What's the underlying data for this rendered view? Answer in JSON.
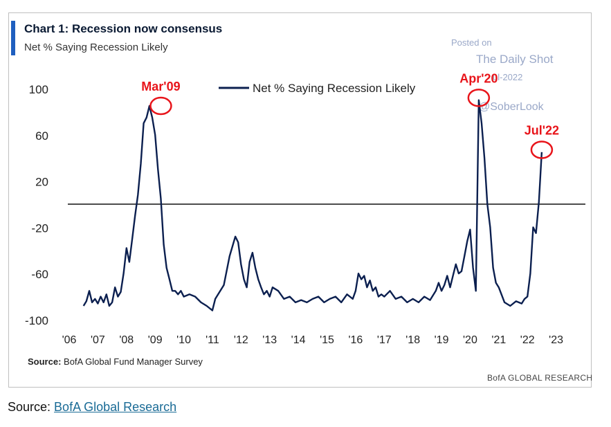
{
  "chart_data": {
    "type": "line",
    "title": "Chart 1: Recession now consensus",
    "subtitle": "Net % Saying Recession Likely",
    "x_tick_labels": [
      "'06",
      "'07",
      "'08",
      "'09",
      "'10",
      "'11",
      "'12",
      "'13",
      "'14",
      "'15",
      "'16",
      "'17",
      "'18",
      "'19",
      "'20",
      "'21",
      "'22",
      "'23"
    ],
    "y_tick_labels": [
      "100",
      "60",
      "20",
      "-20",
      "-60",
      "-100"
    ],
    "y_ticks": [
      100,
      60,
      20,
      -20,
      -60,
      -100
    ],
    "ylim": [
      -100,
      100
    ],
    "xlim": [
      2006,
      2024
    ],
    "reference_line_y": 0,
    "grid": false,
    "legend_position": "top-center",
    "series": [
      {
        "name": "Net % Saying Recession Likely",
        "color": "#0b1f4f",
        "x": [
          2006.5,
          2006.6,
          2006.7,
          2006.8,
          2006.9,
          2007.0,
          2007.1,
          2007.2,
          2007.3,
          2007.4,
          2007.5,
          2007.6,
          2007.7,
          2007.8,
          2007.9,
          2008.0,
          2008.1,
          2008.2,
          2008.3,
          2008.4,
          2008.5,
          2008.6,
          2008.7,
          2008.8,
          2008.9,
          2009.0,
          2009.1,
          2009.2,
          2009.3,
          2009.4,
          2009.5,
          2009.6,
          2009.7,
          2009.8,
          2009.9,
          2010.0,
          2010.2,
          2010.4,
          2010.6,
          2010.8,
          2011.0,
          2011.1,
          2011.2,
          2011.4,
          2011.6,
          2011.8,
          2011.9,
          2012.0,
          2012.1,
          2012.2,
          2012.3,
          2012.4,
          2012.5,
          2012.6,
          2012.7,
          2012.8,
          2012.9,
          2013.0,
          2013.1,
          2013.3,
          2013.5,
          2013.7,
          2013.9,
          2014.1,
          2014.3,
          2014.5,
          2014.7,
          2014.9,
          2015.1,
          2015.3,
          2015.5,
          2015.7,
          2015.9,
          2016.0,
          2016.1,
          2016.2,
          2016.3,
          2016.4,
          2016.5,
          2016.6,
          2016.7,
          2016.8,
          2016.9,
          2017.0,
          2017.2,
          2017.4,
          2017.6,
          2017.8,
          2018.0,
          2018.2,
          2018.4,
          2018.6,
          2018.8,
          2018.9,
          2019.0,
          2019.1,
          2019.2,
          2019.3,
          2019.4,
          2019.5,
          2019.6,
          2019.7,
          2019.8,
          2019.9,
          2020.0,
          2020.1,
          2020.2,
          2020.3,
          2020.4,
          2020.5,
          2020.6,
          2020.7,
          2020.8,
          2020.9,
          2021.0,
          2021.2,
          2021.4,
          2021.6,
          2021.8,
          2021.9,
          2022.0,
          2022.1,
          2022.2,
          2022.3,
          2022.4,
          2022.5
        ],
        "values": [
          -88,
          -84,
          -75,
          -85,
          -82,
          -86,
          -80,
          -85,
          -78,
          -88,
          -85,
          -72,
          -80,
          -76,
          -60,
          -38,
          -50,
          -30,
          -10,
          8,
          35,
          70,
          75,
          85,
          75,
          60,
          30,
          5,
          -35,
          -55,
          -65,
          -75,
          -75,
          -78,
          -75,
          -80,
          -78,
          -80,
          -85,
          -88,
          -92,
          -82,
          -78,
          -70,
          -45,
          -28,
          -33,
          -52,
          -65,
          -72,
          -50,
          -42,
          -55,
          -65,
          -72,
          -78,
          -75,
          -80,
          -72,
          -75,
          -82,
          -80,
          -85,
          -83,
          -85,
          -82,
          -80,
          -85,
          -82,
          -80,
          -85,
          -78,
          -82,
          -75,
          -60,
          -65,
          -62,
          -72,
          -66,
          -75,
          -72,
          -80,
          -78,
          -80,
          -75,
          -82,
          -80,
          -85,
          -82,
          -85,
          -80,
          -83,
          -75,
          -68,
          -75,
          -70,
          -62,
          -72,
          -62,
          -52,
          -60,
          -58,
          -45,
          -32,
          -22,
          -55,
          -75,
          90,
          70,
          40,
          0,
          -20,
          -55,
          -68,
          -72,
          -85,
          -88,
          -84,
          -86,
          -82,
          -80,
          -60,
          -20,
          -25,
          2,
          45
        ]
      }
    ],
    "annotations": [
      {
        "label": "Mar'09",
        "x": 2009.2,
        "y": 85
      },
      {
        "label": "Apr'20",
        "x": 2020.3,
        "y": 92
      },
      {
        "label": "Jul'22",
        "x": 2022.5,
        "y": 47
      }
    ],
    "annotation_color": "#e8141a",
    "reference_line_color": "#111111"
  },
  "header": {
    "accent_color": "#1f5fbf"
  },
  "watermark": {
    "line1": "Posted on",
    "line2": "The Daily Shot",
    "line3": "ul-2022",
    "line4": "@SoberLook"
  },
  "footer": {
    "source_label": "Source:",
    "source_text": "BofA Global Fund Manager Survey",
    "brand": "BofA GLOBAL RESEARCH"
  },
  "page_source": {
    "prefix": "Source: ",
    "link_text": "BofA Global Research"
  }
}
